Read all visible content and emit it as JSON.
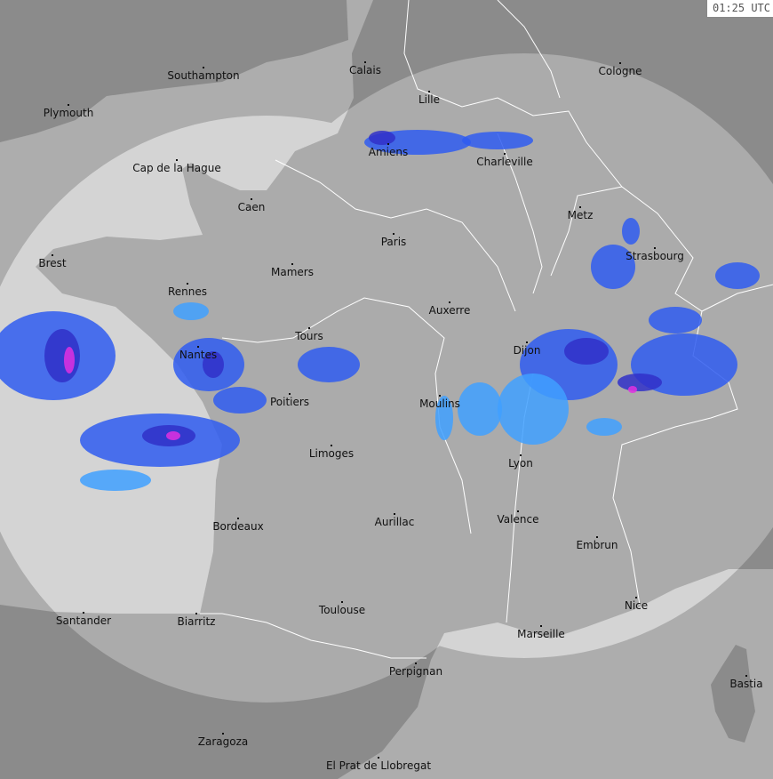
{
  "timestamp": "01:25 UTC",
  "colors": {
    "sea_in_coverage": "#d4d4d4",
    "land_in_coverage": "#ababab",
    "outside_coverage_shade": "#000000",
    "borders_rivers": "#ffffff",
    "rain_light": "#3fa0ff",
    "rain_moderate": "#2f5cf0",
    "rain_heavy": "#3030c8",
    "rain_extreme": "#e030e0"
  },
  "cities": [
    "Southampton",
    "Calais",
    "Lille",
    "Cologne",
    "Plymouth",
    "Amiens",
    "Charleville",
    "Cap de la Hague",
    "Caen",
    "Metz",
    "Paris",
    "Strasbourg",
    "Brest",
    "Mamers",
    "Rennes",
    "Auxerre",
    "Tours",
    "Dijon",
    "Nantes",
    "Poitiers",
    "Moulins",
    "Limoges",
    "Lyon",
    "Valence",
    "Aurillac",
    "Bordeaux",
    "Embrun",
    "Nice",
    "Toulouse",
    "Santander",
    "Biarritz",
    "Marseille",
    "Perpignan",
    "Bastia",
    "Zaragoza",
    "El Prat de Llobregat"
  ]
}
